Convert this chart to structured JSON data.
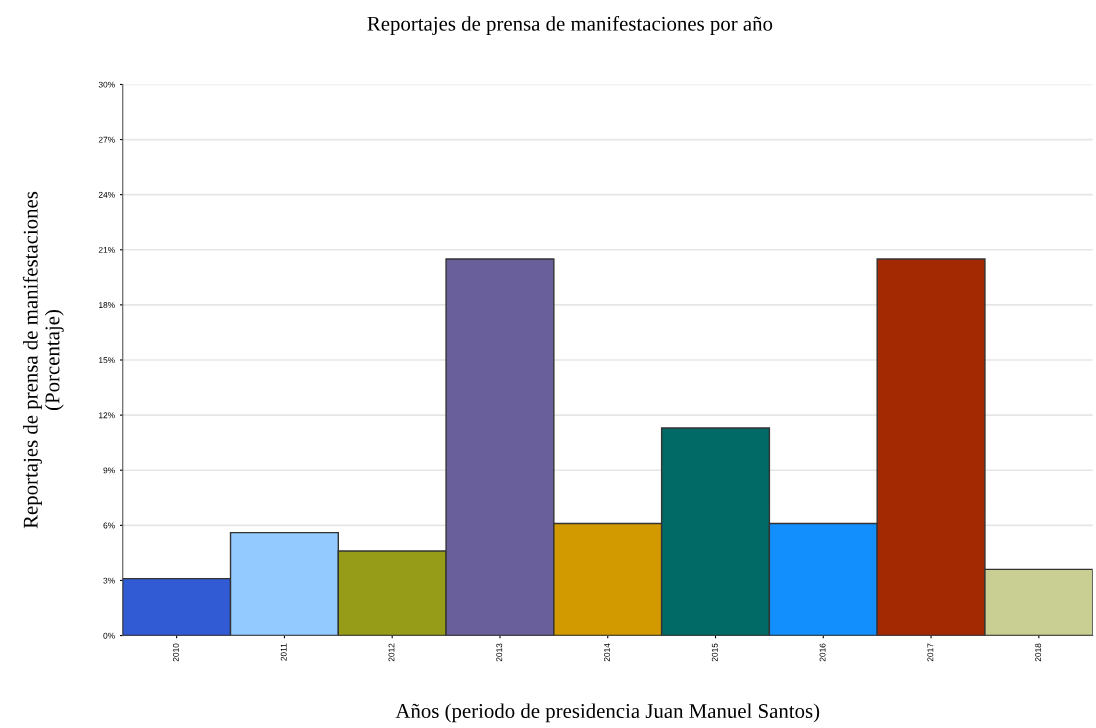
{
  "chart_data": {
    "type": "bar",
    "title": "Reportajes de prensa de manifestaciones por año",
    "xlabel": "Años (periodo de presidencia Juan Manuel Santos)",
    "ylabel": "Reportajes de prensa de manifestaciones\n(Porcentaje)",
    "categories": [
      "2010",
      "2011",
      "2012",
      "2013",
      "2014",
      "2015",
      "2016",
      "2017",
      "2018"
    ],
    "values": [
      3.1,
      5.6,
      4.6,
      20.5,
      6.1,
      11.3,
      6.1,
      20.5,
      3.6
    ],
    "colors": [
      "#315bd4",
      "#93caff",
      "#979c18",
      "#695f9b",
      "#d39a00",
      "#016a67",
      "#128ffd",
      "#a32902",
      "#c9cf93"
    ],
    "ylim": [
      0,
      30
    ],
    "yticks": [
      {
        "value": 0,
        "label": "0%"
      },
      {
        "value": 3,
        "label": "3%"
      },
      {
        "value": 6,
        "label": "6%"
      },
      {
        "value": 9,
        "label": "9%"
      },
      {
        "value": 12,
        "label": "12%"
      },
      {
        "value": 15,
        "label": "15%"
      },
      {
        "value": 18,
        "label": "18%"
      },
      {
        "value": 21,
        "label": "21%"
      },
      {
        "value": 24,
        "label": "24%"
      },
      {
        "value": 27,
        "label": "27%"
      },
      {
        "value": 30,
        "label": "30%"
      }
    ],
    "grid": "y"
  }
}
